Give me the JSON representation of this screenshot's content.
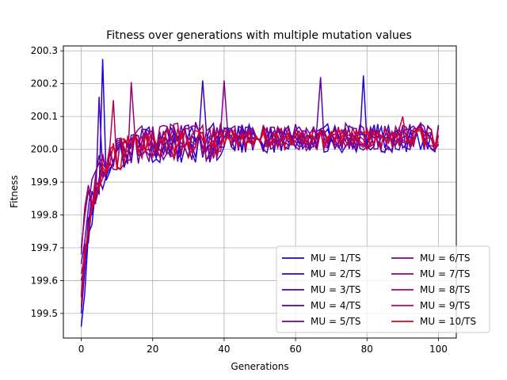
{
  "chart_data": {
    "type": "line",
    "title": "Fitness over generations with multiple mutation values",
    "xlabel": "Generations",
    "ylabel": "Fitness",
    "xlim": [
      -5,
      105
    ],
    "ylim": [
      199.425,
      200.315
    ],
    "xticks": [
      0,
      20,
      40,
      60,
      80,
      100
    ],
    "yticks": [
      199.5,
      199.6,
      199.7,
      199.8,
      199.9,
      200.0,
      200.1,
      200.2,
      200.3
    ],
    "grid": true,
    "legend": {
      "position": "bottom-right",
      "columns": 2
    },
    "generations": 101,
    "series": [
      {
        "name": "MU = 1/TS",
        "color": "#1c00e3",
        "start": 199.46,
        "noise": 0.035,
        "spike_x": 6,
        "spike_y": 200.275
      },
      {
        "name": "MU = 2/TS",
        "color": "#2b00d4",
        "start": 199.5,
        "noise": 0.045,
        "spike_x": 79,
        "spike_y": 200.225
      },
      {
        "name": "MU = 3/TS",
        "color": "#3a00c5",
        "start": 199.55,
        "noise": 0.045,
        "spike_x": 34,
        "spike_y": 200.21
      },
      {
        "name": "MU = 4/TS",
        "color": "#4c00b3",
        "start": 199.6,
        "noise": 0.04,
        "spike_x": 5,
        "spike_y": 200.16
      },
      {
        "name": "MU = 5/TS",
        "color": "#6600a0",
        "start": 199.65,
        "noise": 0.045,
        "spike_x": 67,
        "spike_y": 200.22
      },
      {
        "name": "MU = 6/TS",
        "color": "#800090",
        "start": 199.7,
        "noise": 0.04,
        "spike_x": 40,
        "spike_y": 200.21
      },
      {
        "name": "MU = 7/TS",
        "color": "#990070",
        "start": 199.68,
        "noise": 0.04,
        "spike_x": 14,
        "spike_y": 200.205
      },
      {
        "name": "MU = 8/TS",
        "color": "#b30050",
        "start": 199.62,
        "noise": 0.035,
        "spike_x": 9,
        "spike_y": 200.15
      },
      {
        "name": "MU = 9/TS",
        "color": "#cc0038",
        "start": 199.56,
        "noise": 0.03,
        "spike_x": 90,
        "spike_y": 200.1
      },
      {
        "name": "MU = 10/TS",
        "color": "#e3001c",
        "start": 199.52,
        "noise": 0.025,
        "spike_x": 13,
        "spike_y": 200.02
      }
    ]
  }
}
